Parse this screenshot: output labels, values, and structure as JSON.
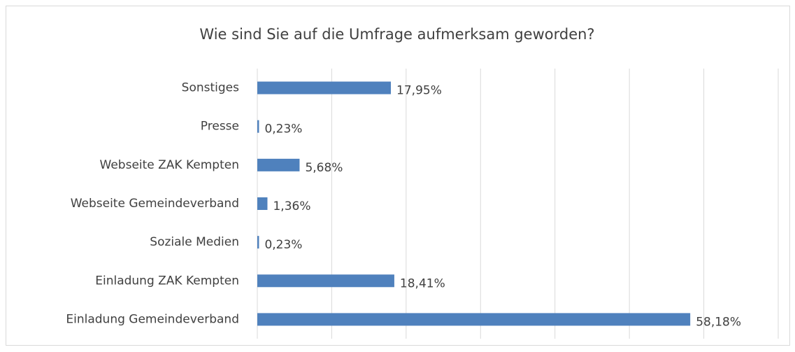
{
  "chart_data": {
    "type": "barh",
    "title": "Wie sind Sie auf die Umfrage aufmerksam geworden?",
    "categories": [
      "Sonstiges",
      "Presse",
      "Webseite ZAK Kempten",
      "Webseite Gemeindeverband",
      "Soziale Medien",
      "Einladung ZAK Kempten",
      "Einladung Gemeindeverband"
    ],
    "values": [
      17.95,
      0.23,
      5.68,
      1.36,
      0.23,
      18.41,
      58.18
    ],
    "value_labels": [
      "17,95%",
      "0,23%",
      "5,68%",
      "1,36%",
      "0,23%",
      "18,41%",
      "58,18%"
    ],
    "color": "#4f81bd",
    "xlim": [
      0,
      70
    ],
    "xticks": [
      0,
      10,
      20,
      30,
      40,
      50,
      60,
      70
    ],
    "grid": true
  }
}
